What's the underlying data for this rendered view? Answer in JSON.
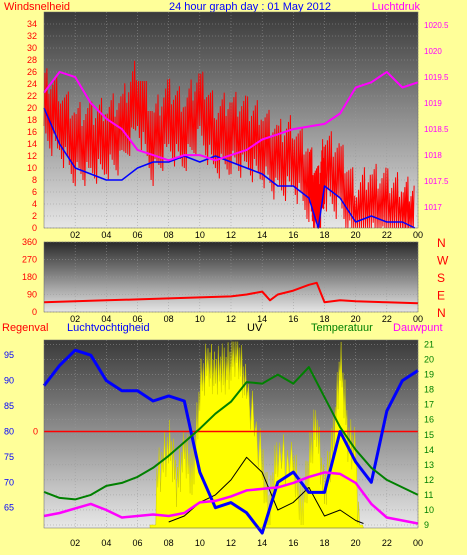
{
  "header": {
    "left_label": "Windsnelheid",
    "title": "24 hour graph day : 01 May 2012",
    "right_label": "Luchtdruk"
  },
  "colors": {
    "background": "#ffff99",
    "wind": "#ff0000",
    "gust": "#0000ff",
    "pressure": "#ff00ff",
    "humidity": "#0000ff",
    "temperature": "#008000",
    "dewpoint": "#ff00ff",
    "uv": "#ffff00",
    "solar": "#000000",
    "rain": "#ff0000",
    "left_axis_text": "#ff0000",
    "blue_axis_text": "#0000ff",
    "green_axis_text": "#008000",
    "pressure_axis_text": "#ff00ff"
  },
  "x_ticks": [
    "02",
    "04",
    "06",
    "08",
    "10",
    "12",
    "14",
    "16",
    "18",
    "20",
    "22",
    "00"
  ],
  "wind_panel": {
    "y_ticks": [
      "0",
      "2",
      "4",
      "6",
      "8",
      "10",
      "12",
      "14",
      "16",
      "18",
      "20",
      "22",
      "24",
      "26",
      "28",
      "30",
      "32",
      "34"
    ],
    "right_ticks": [
      "1017",
      "1017.5",
      "1018",
      "1018.5",
      "1019",
      "1019.5",
      "1020",
      "1020.5"
    ]
  },
  "dir_panel": {
    "y_ticks": [
      "0",
      "90",
      "180",
      "270",
      "360"
    ],
    "compass": [
      "N",
      "W",
      "S",
      "E",
      "N"
    ]
  },
  "legend": {
    "regenval": "Regenval",
    "luchtvochtigheid": "Luchtvochtigheid",
    "uv": "UV",
    "temperatuur": "Temperatuur",
    "dauwpunt": "Dauwpunt"
  },
  "bottom_panel": {
    "left_ticks": [
      "65",
      "70",
      "75",
      "80",
      "85",
      "90",
      "95"
    ],
    "rain_tick": "0",
    "right_ticks": [
      "9",
      "10",
      "11",
      "12",
      "13",
      "14",
      "15",
      "16",
      "17",
      "18",
      "19",
      "20",
      "21"
    ]
  },
  "chart_data": [
    {
      "type": "line",
      "title": "24 hour graph day : 01 May 2012",
      "x_unit": "hour",
      "xlim": [
        0,
        24
      ],
      "ylabel": "Windsnelheid",
      "y2label": "Luchtdruk",
      "ylim": [
        0,
        36
      ],
      "y2lim": [
        1016.6,
        1020.75
      ],
      "series": [
        {
          "name": "Windsnelheid",
          "x": [
            0,
            1,
            2,
            3,
            4,
            5,
            6,
            7,
            8,
            9,
            10,
            11,
            12,
            13,
            14,
            15,
            16,
            17,
            17.6,
            18,
            19,
            20,
            21,
            22,
            23,
            23.8
          ],
          "values": [
            20,
            18,
            14,
            14,
            15,
            16,
            22,
            14,
            18,
            16,
            20,
            15,
            16,
            15,
            14,
            11,
            12,
            8,
            3,
            10,
            8,
            2,
            4,
            3,
            2,
            1
          ]
        },
        {
          "name": "",
          "x": [
            0,
            1,
            2,
            3,
            4,
            5,
            6,
            7,
            8,
            9,
            10,
            11,
            12,
            13,
            14,
            15,
            16,
            17,
            17.6,
            18,
            19,
            20,
            21,
            22,
            23,
            23.8
          ],
          "values": [
            20,
            14,
            10,
            9,
            8,
            8,
            10,
            11,
            11,
            12,
            11,
            12,
            11,
            10,
            9,
            7,
            7,
            5,
            0,
            7,
            5,
            1,
            2,
            1,
            1,
            0
          ]
        },
        {
          "name": "Luchtdruk",
          "x": [
            0,
            1,
            2,
            3,
            4,
            5,
            6,
            7,
            8,
            9,
            10,
            11,
            12,
            13,
            14,
            15,
            16,
            17,
            18,
            19,
            20,
            21,
            22,
            23,
            24
          ],
          "values": [
            1019.2,
            1019.6,
            1019.5,
            1019.0,
            1018.7,
            1018.5,
            1018.1,
            1018.0,
            1017.9,
            1018.0,
            1018.0,
            1017.9,
            1018.0,
            1018.1,
            1018.3,
            1018.4,
            1018.5,
            1018.55,
            1018.6,
            1018.8,
            1019.3,
            1019.4,
            1019.6,
            1019.3,
            1019.4
          ]
        }
      ]
    },
    {
      "type": "line",
      "x_unit": "hour",
      "xlim": [
        0,
        24
      ],
      "ylim": [
        0,
        360
      ],
      "series": [
        {
          "name": "",
          "x": [
            0,
            2,
            4,
            6,
            8,
            10,
            12,
            13,
            14,
            14.5,
            15,
            16,
            17,
            17.5,
            18,
            19,
            20,
            22,
            24
          ],
          "values": [
            50,
            55,
            60,
            65,
            70,
            75,
            80,
            90,
            105,
            60,
            90,
            110,
            140,
            150,
            50,
            60,
            55,
            50,
            45
          ]
        }
      ]
    },
    {
      "type": "line",
      "x_unit": "hour",
      "xlim": [
        0,
        24
      ],
      "ylim": [
        61,
        98
      ],
      "y2lim": [
        8.8,
        21.3
      ],
      "series": [
        {
          "name": "Luchtvochtigheid",
          "x": [
            0,
            1,
            2,
            3,
            4,
            5,
            6,
            7,
            8,
            9,
            10,
            11,
            12,
            13,
            14,
            15,
            16,
            17,
            18,
            19,
            20,
            21,
            22,
            23,
            24
          ],
          "values": [
            89,
            93,
            96,
            95,
            90,
            88,
            88,
            86,
            87,
            86,
            72,
            65,
            66,
            64,
            60,
            70,
            72,
            68,
            68,
            80,
            74,
            70,
            84,
            90,
            92
          ]
        },
        {
          "name": "Temperatuur",
          "x": [
            0,
            1,
            2,
            3,
            4,
            5,
            6,
            7,
            8,
            9,
            10,
            11,
            12,
            13,
            14,
            15,
            16,
            17,
            18,
            19,
            20,
            21,
            22,
            23,
            24
          ],
          "values": [
            11.2,
            10.8,
            10.7,
            11.0,
            11.6,
            11.8,
            12.2,
            12.8,
            13.6,
            14.5,
            15.4,
            16.4,
            17.2,
            18.5,
            18.4,
            19.0,
            18.4,
            19.5,
            17.5,
            15.5,
            14.0,
            12.8,
            12.0,
            11.5,
            11.0
          ]
        },
        {
          "name": "Dauwpunt",
          "x": [
            0,
            1,
            2,
            3,
            4,
            5,
            6,
            7,
            8,
            9,
            10,
            11,
            12,
            13,
            14,
            15,
            16,
            17,
            18,
            19,
            20,
            21,
            22,
            23,
            24
          ],
          "values": [
            9.6,
            9.8,
            10.1,
            10.4,
            10.0,
            9.5,
            9.6,
            9.7,
            9.6,
            9.8,
            10.5,
            10.6,
            10.9,
            11.3,
            11.4,
            11.5,
            11.8,
            12.2,
            12.5,
            12.4,
            11.8,
            10.4,
            9.5,
            9.3,
            9.1
          ]
        },
        {
          "name": "UV",
          "x": [
            6.8,
            7.3,
            8,
            8.5,
            9,
            9.5,
            10,
            10.6,
            11,
            11.5,
            12,
            12.5,
            13,
            14,
            14.5,
            15,
            16,
            16.5,
            17,
            17.5,
            18,
            18.5,
            19,
            19.5,
            20,
            20.5
          ],
          "values": [
            0,
            12.5,
            14.5,
            12,
            14,
            12,
            18,
            20,
            19,
            19.3,
            20,
            20.5,
            18,
            13,
            10,
            14,
            13,
            10,
            13,
            16,
            11,
            14,
            20,
            15,
            14,
            0
          ]
        },
        {
          "name": "",
          "x": [
            8,
            9,
            10,
            11,
            12,
            13,
            14,
            15,
            16,
            17,
            18,
            19,
            20,
            20.5
          ],
          "values": [
            9.2,
            9.6,
            10.5,
            11,
            12,
            13.5,
            12.5,
            10,
            10.5,
            11.5,
            9.6,
            10,
            9.3,
            9.1
          ]
        }
      ]
    }
  ]
}
